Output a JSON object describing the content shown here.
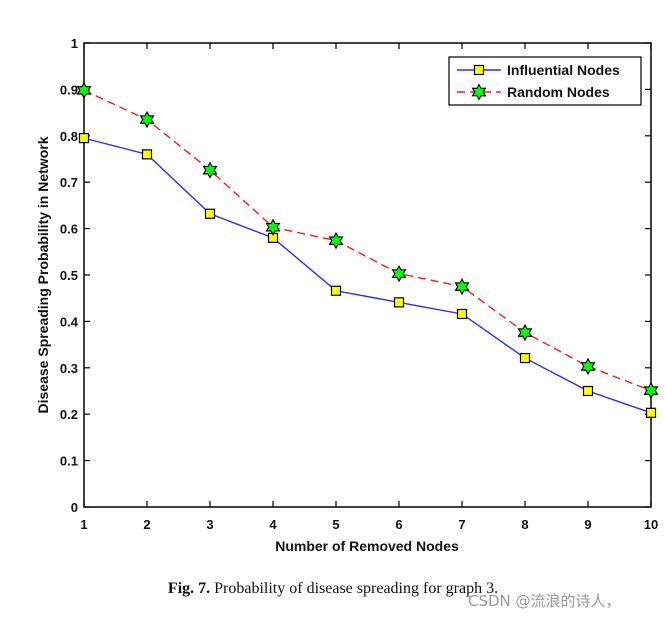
{
  "chart_data": {
    "type": "line",
    "x": [
      1,
      2,
      3,
      4,
      5,
      6,
      7,
      8,
      9,
      10
    ],
    "series": [
      {
        "name": "Influential Nodes",
        "values": [
          0.795,
          0.76,
          0.632,
          0.58,
          0.466,
          0.441,
          0.416,
          0.321,
          0.25,
          0.203
        ],
        "line_color": "#2b2bff",
        "line_style": "solid",
        "marker": "square",
        "marker_color": "#ffff00"
      },
      {
        "name": "Random Nodes",
        "values": [
          0.898,
          0.835,
          0.726,
          0.603,
          0.574,
          0.503,
          0.475,
          0.376,
          0.303,
          0.251
        ],
        "line_color": "#ff1a1a",
        "line_style": "dashed",
        "marker": "hexagram",
        "marker_color": "#00ff00"
      }
    ],
    "title": "",
    "xlabel": "Number of Removed Nodes",
    "ylabel": "Disease Spreading Probability in Network",
    "xlim": [
      1,
      10
    ],
    "ylim": [
      0,
      1
    ],
    "xticks": [
      "1",
      "2",
      "3",
      "4",
      "5",
      "6",
      "7",
      "8",
      "9",
      "10"
    ],
    "yticks": [
      "0",
      "0.1",
      "0.2",
      "0.3",
      "0.4",
      "0.5",
      "0.6",
      "0.7",
      "0.8",
      "0.9",
      "1"
    ],
    "grid": false,
    "legend_position": "top-right"
  },
  "caption": {
    "label": "Fig. 7.",
    "text": " Probability of disease spreading for graph 3."
  },
  "watermark": "CSDN @流浪的诗人，"
}
